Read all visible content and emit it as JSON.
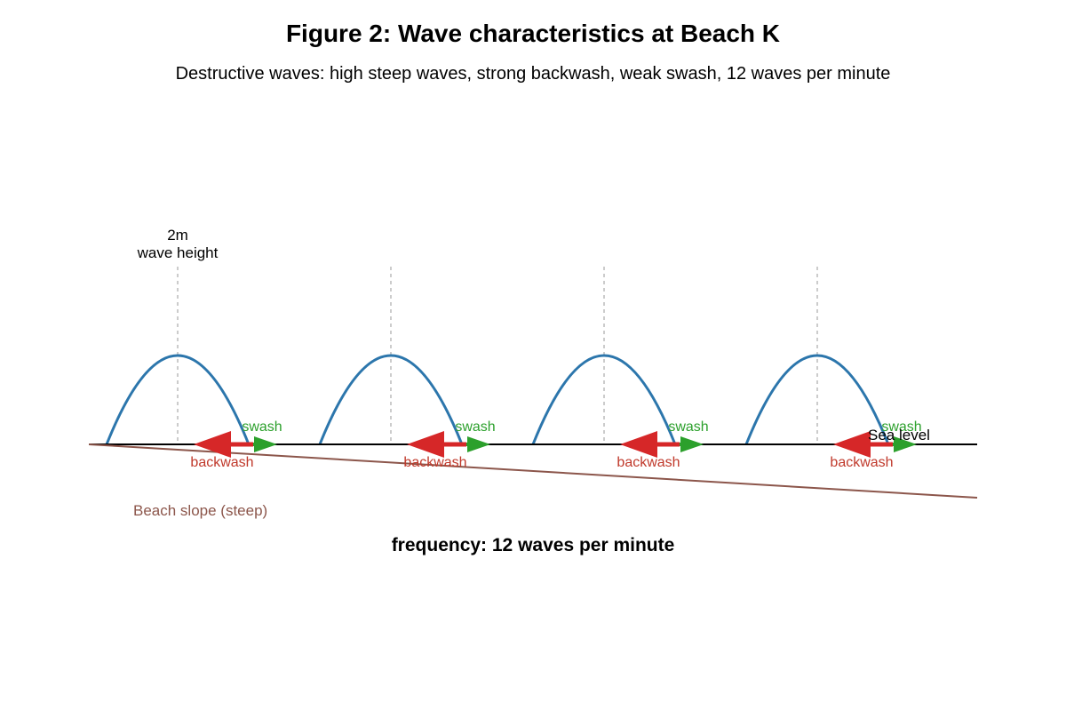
{
  "title": "Figure 2: Wave characteristics at Beach K",
  "subtitle": "Destructive waves: high steep waves, strong backwash, weak swash, 12 waves per minute",
  "wave_height_label": {
    "line1": "2m",
    "line2": "wave height"
  },
  "sea_level_label": "Sea level",
  "beach_slope_label": "Beach slope (steep)",
  "frequency_label": "frequency: 12 waves per minute",
  "wave_count": 4,
  "swash_label": "swash",
  "backwash_label": "backwash",
  "colors": {
    "wave": "#2c76ac",
    "swash": "#2ca02c",
    "backwash": "#d62728",
    "backwash_label": "#c0392b",
    "beach": "#8c564b",
    "sea_level": "#000000",
    "crest_guide": "#aaaaaa"
  }
}
